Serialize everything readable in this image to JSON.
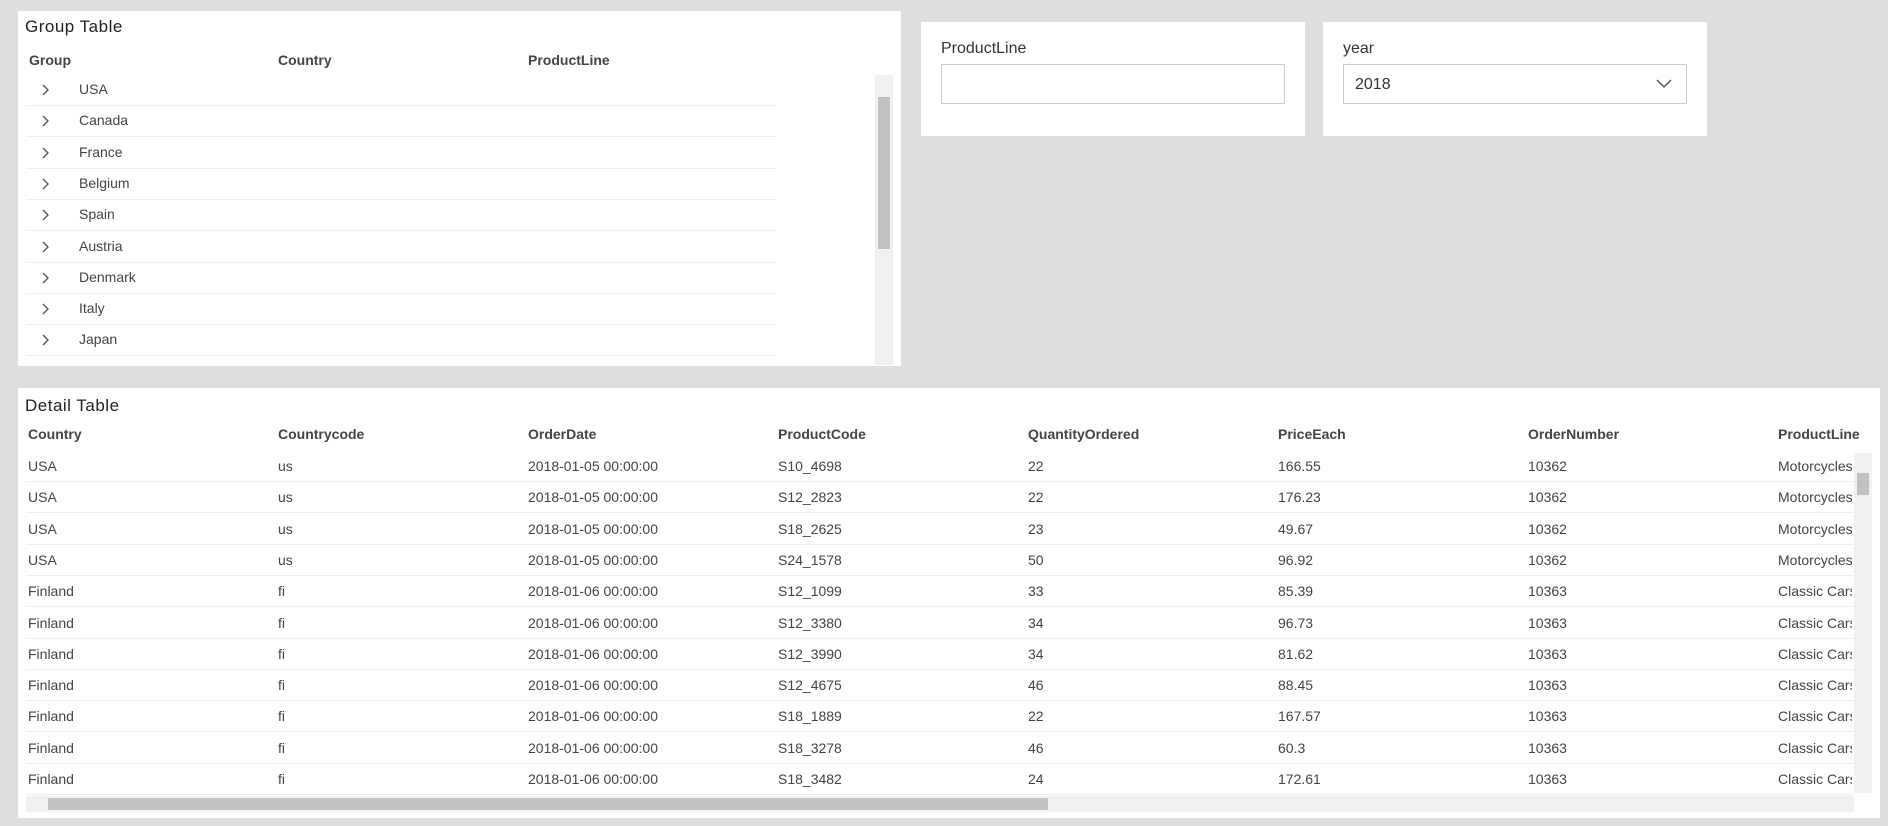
{
  "group_table": {
    "title": "Group Table",
    "columns": [
      "Group",
      "Country",
      "ProductLine"
    ],
    "rows": [
      "USA",
      "Canada",
      "France",
      "Belgium",
      "Spain",
      "Austria",
      "Denmark",
      "Italy",
      "Japan"
    ]
  },
  "filters": [
    {
      "label": "ProductLine",
      "value": ""
    },
    {
      "label": "year",
      "value": "2018"
    }
  ],
  "detail_table": {
    "title": "Detail Table",
    "columns": [
      "Country",
      "Countrycode",
      "OrderDate",
      "ProductCode",
      "QuantityOrdered",
      "PriceEach",
      "OrderNumber",
      "ProductLine"
    ],
    "rows": [
      [
        "USA",
        "us",
        "2018-01-05 00:00:00",
        "S10_4698",
        "22",
        "166.55",
        "10362",
        "Motorcycles"
      ],
      [
        "USA",
        "us",
        "2018-01-05 00:00:00",
        "S12_2823",
        "22",
        "176.23",
        "10362",
        "Motorcycles"
      ],
      [
        "USA",
        "us",
        "2018-01-05 00:00:00",
        "S18_2625",
        "23",
        "49.67",
        "10362",
        "Motorcycles"
      ],
      [
        "USA",
        "us",
        "2018-01-05 00:00:00",
        "S24_1578",
        "50",
        "96.92",
        "10362",
        "Motorcycles"
      ],
      [
        "Finland",
        "fi",
        "2018-01-06 00:00:00",
        "S12_1099",
        "33",
        "85.39",
        "10363",
        "Classic Cars"
      ],
      [
        "Finland",
        "fi",
        "2018-01-06 00:00:00",
        "S12_3380",
        "34",
        "96.73",
        "10363",
        "Classic Cars"
      ],
      [
        "Finland",
        "fi",
        "2018-01-06 00:00:00",
        "S12_3990",
        "34",
        "81.62",
        "10363",
        "Classic Cars"
      ],
      [
        "Finland",
        "fi",
        "2018-01-06 00:00:00",
        "S12_4675",
        "46",
        "88.45",
        "10363",
        "Classic Cars"
      ],
      [
        "Finland",
        "fi",
        "2018-01-06 00:00:00",
        "S18_1889",
        "22",
        "167.57",
        "10363",
        "Classic Cars"
      ],
      [
        "Finland",
        "fi",
        "2018-01-06 00:00:00",
        "S18_3278",
        "46",
        "60.3",
        "10363",
        "Classic Cars"
      ],
      [
        "Finland",
        "fi",
        "2018-01-06 00:00:00",
        "S18_3482",
        "24",
        "172.61",
        "10363",
        "Classic Cars"
      ]
    ]
  }
}
